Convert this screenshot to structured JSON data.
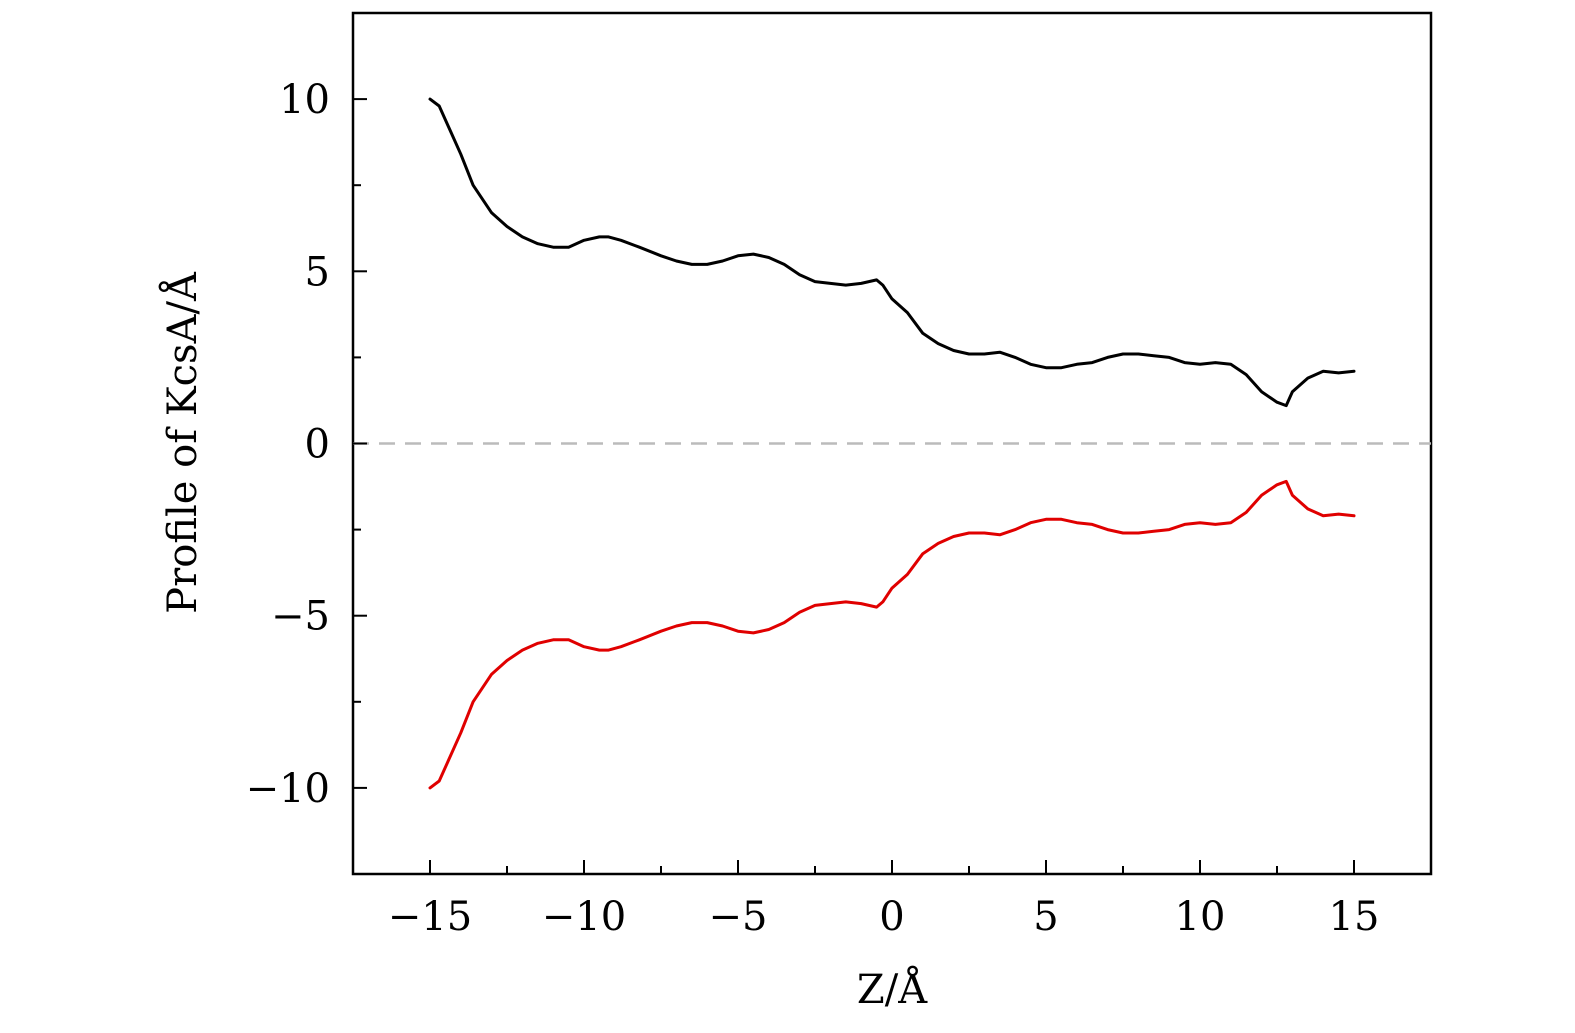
{
  "chart_data": {
    "type": "line",
    "xlabel": "Z/Å",
    "ylabel": "Profile of KcsA/Å",
    "xlim": [
      -17.5,
      17.5
    ],
    "ylim": [
      -12.5,
      12.5
    ],
    "x_ticks": [
      -15,
      -10,
      -5,
      0,
      5,
      10,
      15
    ],
    "x_tick_labels": [
      "−15",
      "−10",
      "−5",
      "0",
      "5",
      "10",
      "15"
    ],
    "y_ticks": [
      -10,
      -5,
      0,
      5,
      10
    ],
    "y_tick_labels": [
      "−10",
      "−5",
      "0",
      "5",
      "10"
    ],
    "grid": false,
    "zero_line": {
      "y": 0,
      "style": "dashed",
      "color": "#bbbbbb"
    },
    "series": [
      {
        "color": "#000000",
        "x": [
          -15,
          -14.7,
          -14.4,
          -14.0,
          -13.6,
          -13.0,
          -12.5,
          -12.0,
          -11.5,
          -11.0,
          -10.5,
          -10.0,
          -9.5,
          -9.2,
          -8.8,
          -8.2,
          -7.5,
          -7.0,
          -6.5,
          -6.0,
          -5.5,
          -5.0,
          -4.5,
          -4.0,
          -3.5,
          -3.0,
          -2.5,
          -2.0,
          -1.5,
          -1.0,
          -0.5,
          -0.3,
          0.0,
          0.5,
          1.0,
          1.5,
          2.0,
          2.5,
          3.0,
          3.5,
          4.0,
          4.5,
          5.0,
          5.5,
          6.0,
          6.5,
          7.0,
          7.5,
          8.0,
          8.5,
          9.0,
          9.5,
          10.0,
          10.5,
          11.0,
          11.5,
          12.0,
          12.5,
          12.8,
          13.0,
          13.5,
          14.0,
          14.5,
          15.0
        ],
        "values": [
          10.0,
          9.8,
          9.2,
          8.4,
          7.5,
          6.7,
          6.3,
          6.0,
          5.8,
          5.7,
          5.7,
          5.9,
          6.0,
          6.0,
          5.9,
          5.7,
          5.45,
          5.3,
          5.2,
          5.2,
          5.3,
          5.45,
          5.5,
          5.4,
          5.2,
          4.9,
          4.7,
          4.65,
          4.6,
          4.65,
          4.75,
          4.6,
          4.2,
          3.8,
          3.2,
          2.9,
          2.7,
          2.6,
          2.6,
          2.65,
          2.5,
          2.3,
          2.2,
          2.2,
          2.3,
          2.35,
          2.5,
          2.6,
          2.6,
          2.55,
          2.5,
          2.35,
          2.3,
          2.35,
          2.3,
          2.0,
          1.5,
          1.2,
          1.1,
          1.5,
          1.9,
          2.1,
          2.05,
          2.1
        ]
      },
      {
        "color": "#e00000",
        "x": [
          -15,
          -14.7,
          -14.4,
          -14.0,
          -13.6,
          -13.0,
          -12.5,
          -12.0,
          -11.5,
          -11.0,
          -10.5,
          -10.0,
          -9.5,
          -9.2,
          -8.8,
          -8.2,
          -7.5,
          -7.0,
          -6.5,
          -6.0,
          -5.5,
          -5.0,
          -4.5,
          -4.0,
          -3.5,
          -3.0,
          -2.5,
          -2.0,
          -1.5,
          -1.0,
          -0.5,
          -0.3,
          0.0,
          0.5,
          1.0,
          1.5,
          2.0,
          2.5,
          3.0,
          3.5,
          4.0,
          4.5,
          5.0,
          5.5,
          6.0,
          6.5,
          7.0,
          7.5,
          8.0,
          8.5,
          9.0,
          9.5,
          10.0,
          10.5,
          11.0,
          11.5,
          12.0,
          12.5,
          12.8,
          13.0,
          13.5,
          14.0,
          14.5,
          15.0
        ],
        "values": [
          -10.0,
          -9.8,
          -9.2,
          -8.4,
          -7.5,
          -6.7,
          -6.3,
          -6.0,
          -5.8,
          -5.7,
          -5.7,
          -5.9,
          -6.0,
          -6.0,
          -5.9,
          -5.7,
          -5.45,
          -5.3,
          -5.2,
          -5.2,
          -5.3,
          -5.45,
          -5.5,
          -5.4,
          -5.2,
          -4.9,
          -4.7,
          -4.65,
          -4.6,
          -4.65,
          -4.75,
          -4.6,
          -4.2,
          -3.8,
          -3.2,
          -2.9,
          -2.7,
          -2.6,
          -2.6,
          -2.65,
          -2.5,
          -2.3,
          -2.2,
          -2.2,
          -2.3,
          -2.35,
          -2.5,
          -2.6,
          -2.6,
          -2.55,
          -2.5,
          -2.35,
          -2.3,
          -2.35,
          -2.3,
          -2.0,
          -1.5,
          -1.2,
          -1.1,
          -1.5,
          -1.9,
          -2.1,
          -2.05,
          -2.1
        ]
      }
    ]
  }
}
